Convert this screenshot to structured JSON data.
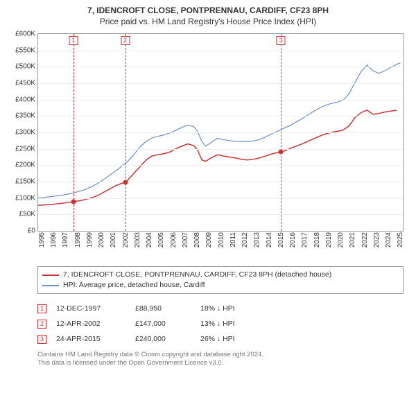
{
  "title_line1": "7, IDENCROFT CLOSE, PONTPRENNAU, CARDIFF, CF23 8PH",
  "title_line2": "Price paid vs. HM Land Registry's House Price Index (HPI)",
  "chart": {
    "type": "line",
    "background_color": "#ffffff",
    "grid_color": "#eeeeee",
    "axis_color": "#999999",
    "label_fontsize": 10,
    "x": {
      "min": 1995.0,
      "max": 2025.5,
      "ticks": [
        1995,
        1996,
        1997,
        1998,
        1999,
        2000,
        2001,
        2002,
        2003,
        2004,
        2005,
        2006,
        2007,
        2008,
        2009,
        2010,
        2011,
        2012,
        2013,
        2014,
        2015,
        2016,
        2017,
        2018,
        2019,
        2020,
        2021,
        2022,
        2023,
        2024,
        2025
      ],
      "tick_labels": [
        "1995",
        "1996",
        "1997",
        "1998",
        "1999",
        "2000",
        "2001",
        "2002",
        "2003",
        "2004",
        "2005",
        "2006",
        "2007",
        "2008",
        "2009",
        "2010",
        "2011",
        "2012",
        "2013",
        "2014",
        "2015",
        "2016",
        "2017",
        "2018",
        "2019",
        "2020",
        "2021",
        "2022",
        "2023",
        "2024",
        "2025"
      ]
    },
    "y": {
      "min": 0,
      "max": 600000,
      "ticks": [
        0,
        50000,
        100000,
        150000,
        200000,
        250000,
        300000,
        350000,
        400000,
        450000,
        500000,
        550000,
        600000
      ],
      "tick_labels": [
        "£0",
        "£50K",
        "£100K",
        "£150K",
        "£200K",
        "£250K",
        "£300K",
        "£350K",
        "£400K",
        "£450K",
        "£500K",
        "£550K",
        "£600K"
      ]
    },
    "series": [
      {
        "id": "price_paid",
        "color": "#cc3333",
        "line_width": 1.5,
        "x": [
          1995.0,
          1995.5,
          1996.0,
          1996.5,
          1997.0,
          1997.5,
          1997.95,
          1998.5,
          1999.0,
          1999.5,
          2000.0,
          2000.5,
          2001.0,
          2001.5,
          2002.0,
          2002.28,
          2002.5,
          2003.0,
          2003.5,
          2004.0,
          2004.5,
          2005.0,
          2005.5,
          2006.0,
          2006.5,
          2007.0,
          2007.5,
          2008.0,
          2008.3,
          2008.7,
          2009.0,
          2009.5,
          2010.0,
          2010.5,
          2011.0,
          2011.5,
          2012.0,
          2012.5,
          2013.0,
          2013.5,
          2014.0,
          2014.5,
          2015.0,
          2015.31,
          2015.7,
          2016.0,
          2016.5,
          2017.0,
          2017.5,
          2018.0,
          2018.5,
          2019.0,
          2019.5,
          2020.0,
          2020.5,
          2021.0,
          2021.5,
          2022.0,
          2022.5,
          2023.0,
          2023.5,
          2024.0,
          2024.5,
          2025.0
        ],
        "y": [
          78000,
          79000,
          80000,
          82000,
          84000,
          86500,
          88950,
          92000,
          96000,
          101000,
          108000,
          118000,
          128000,
          138000,
          145000,
          147000,
          155000,
          175000,
          195000,
          215000,
          228000,
          232000,
          235000,
          240000,
          250000,
          258000,
          265000,
          260000,
          248000,
          216000,
          212000,
          223000,
          232000,
          228000,
          225000,
          222000,
          218000,
          216000,
          218000,
          222000,
          228000,
          234000,
          238500,
          240000,
          245000,
          250000,
          257000,
          264000,
          272000,
          280000,
          288000,
          295000,
          300000,
          303000,
          307000,
          320000,
          345000,
          360000,
          368000,
          355000,
          358000,
          362000,
          365000,
          368000
        ]
      },
      {
        "id": "hpi",
        "color": "#6b8fc9",
        "line_width": 1.2,
        "x": [
          1995.0,
          1995.5,
          1996.0,
          1996.5,
          1997.0,
          1997.5,
          1998.0,
          1998.5,
          1999.0,
          1999.5,
          2000.0,
          2000.5,
          2001.0,
          2001.5,
          2002.0,
          2002.5,
          2003.0,
          2003.5,
          2004.0,
          2004.5,
          2005.0,
          2005.5,
          2006.0,
          2006.5,
          2007.0,
          2007.5,
          2008.0,
          2008.3,
          2008.7,
          2009.0,
          2009.5,
          2010.0,
          2010.5,
          2011.0,
          2011.5,
          2012.0,
          2012.5,
          2013.0,
          2013.5,
          2014.0,
          2014.5,
          2015.0,
          2015.5,
          2016.0,
          2016.5,
          2017.0,
          2017.5,
          2018.0,
          2018.5,
          2019.0,
          2019.5,
          2020.0,
          2020.5,
          2021.0,
          2021.5,
          2022.0,
          2022.5,
          2023.0,
          2023.5,
          2024.0,
          2024.5,
          2025.0,
          2025.3
        ],
        "y": [
          100000,
          102000,
          104000,
          106000,
          109000,
          112000,
          116000,
          121000,
          127000,
          135000,
          145000,
          157000,
          170000,
          183000,
          197000,
          212000,
          232000,
          255000,
          272000,
          283000,
          288000,
          292000,
          298000,
          306000,
          315000,
          322000,
          318000,
          305000,
          272000,
          258000,
          270000,
          282000,
          278000,
          275000,
          273000,
          272000,
          272000,
          274000,
          278000,
          286000,
          295000,
          303000,
          312000,
          320000,
          330000,
          340000,
          352000,
          363000,
          374000,
          382000,
          388000,
          392000,
          398000,
          418000,
          452000,
          485000,
          505000,
          488000,
          480000,
          488000,
          498000,
          508000,
          512000
        ]
      }
    ],
    "vlines": [
      {
        "x": 1997.95,
        "label": "1",
        "color": "#cc3333"
      },
      {
        "x": 2002.28,
        "label": "2",
        "color": "#cc3333"
      },
      {
        "x": 2015.31,
        "label": "3",
        "color": "#cc3333"
      }
    ],
    "markers": [
      {
        "x": 1997.95,
        "y": 88950,
        "color": "#cc3333"
      },
      {
        "x": 2002.28,
        "y": 147000,
        "color": "#cc3333"
      },
      {
        "x": 2015.31,
        "y": 240000,
        "color": "#cc3333"
      }
    ]
  },
  "legend": {
    "items": [
      {
        "color": "#cc3333",
        "label": "7, IDENCROFT CLOSE, PONTPRENNAU, CARDIFF, CF23 8PH (detached house)"
      },
      {
        "color": "#6b8fc9",
        "label": "HPI: Average price, detached house, Cardiff"
      }
    ]
  },
  "transactions": [
    {
      "n": "1",
      "date": "12-DEC-1997",
      "price": "£88,950",
      "pct": "18% ↓ HPI"
    },
    {
      "n": "2",
      "date": "12-APR-2002",
      "price": "£147,000",
      "pct": "13% ↓ HPI"
    },
    {
      "n": "3",
      "date": "24-APR-2015",
      "price": "£240,000",
      "pct": "26% ↓ HPI"
    }
  ],
  "footer_line1": "Contains HM Land Registry data © Crown copyright and database right 2024.",
  "footer_line2": "This data is licensed under the Open Government Licence v3.0."
}
